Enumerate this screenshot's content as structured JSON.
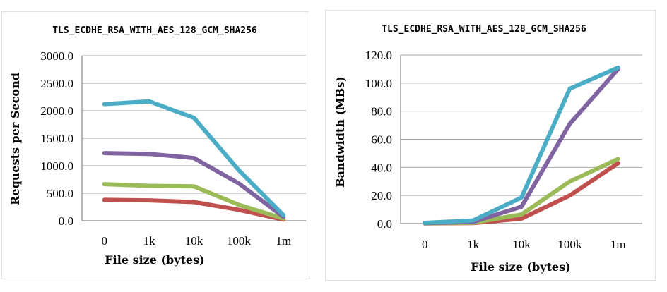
{
  "chart_data": [
    {
      "type": "line",
      "title": "TLS_ECDHE_RSA_WITH_AES_128_GCM_SHA256",
      "xlabel": "File size (bytes)",
      "ylabel": "Requests per Second",
      "categories": [
        "0",
        "1k",
        "10k",
        "100k",
        "1m"
      ],
      "ylim": [
        0,
        3000
      ],
      "yticks": [
        "0.0",
        "500.0",
        "1000.0",
        "1500.0",
        "2000.0",
        "2500.0",
        "3000.0"
      ],
      "grid": true,
      "series": [
        {
          "color": "#4bacc6",
          "values": [
            2120,
            2170,
            1870,
            920,
            100
          ]
        },
        {
          "color": "#8064a2",
          "values": [
            1230,
            1215,
            1140,
            680,
            70
          ]
        },
        {
          "color": "#9bbb59",
          "values": [
            665,
            635,
            625,
            290,
            40
          ]
        },
        {
          "color": "#c0504d",
          "values": [
            380,
            370,
            340,
            200,
            20
          ]
        }
      ]
    },
    {
      "type": "line",
      "title": "TLS_ECDHE_RSA_WITH_AES_128_GCM_SHA256",
      "xlabel": "File size (bytes)",
      "ylabel": "Bandwidth (MBs)",
      "categories": [
        "0",
        "1k",
        "10k",
        "100k",
        "1m"
      ],
      "ylim": [
        0,
        120
      ],
      "yticks": [
        "0.0",
        "20.0",
        "40.0",
        "60.0",
        "80.0",
        "100.0",
        "120.0"
      ],
      "grid": true,
      "series": [
        {
          "color": "#4bacc6",
          "values": [
            0.5,
            2.2,
            18.5,
            96,
            111
          ]
        },
        {
          "color": "#8064a2",
          "values": [
            0.3,
            1.2,
            12,
            71,
            110
          ]
        },
        {
          "color": "#9bbb59",
          "values": [
            0.2,
            0.6,
            6.5,
            30,
            46
          ]
        },
        {
          "color": "#c0504d",
          "values": [
            0.1,
            0.4,
            3.5,
            20,
            43
          ]
        }
      ]
    }
  ]
}
